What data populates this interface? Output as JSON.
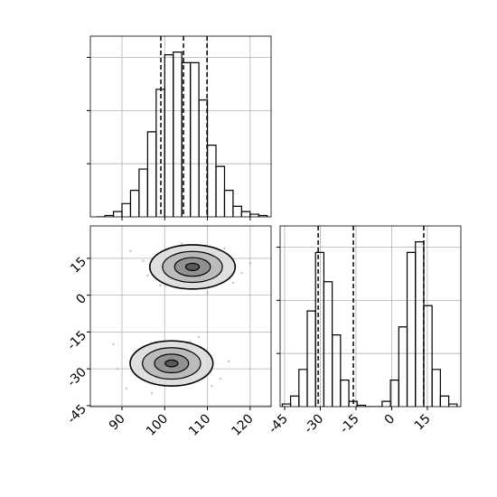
{
  "chart_data": [
    {
      "type": "histogram",
      "color": "#000000",
      "grid": true,
      "bins": [
        84,
        86,
        88,
        90,
        92,
        94,
        96,
        98,
        100,
        102,
        104,
        106,
        108,
        110,
        112,
        114,
        116,
        118,
        120,
        122,
        124
      ],
      "values": [
        0,
        0.0005,
        0.002,
        0.005,
        0.01,
        0.018,
        0.032,
        0.048,
        0.061,
        0.062,
        0.058,
        0.058,
        0.044,
        0.027,
        0.019,
        0.01,
        0.004,
        0.002,
        0.001,
        0.0005
      ],
      "xlim": [
        82.6,
        124.9
      ],
      "xtick_marks": [
        90,
        100,
        110,
        120
      ],
      "ylim": [
        0,
        0.068
      ],
      "ytick_marks": [
        0.02,
        0.04,
        0.06
      ],
      "quantiles": [
        99.1,
        104.4,
        109.9
      ]
    },
    {
      "type": "contour",
      "color": "#000000",
      "grid": true,
      "xlim": [
        82.6,
        124.9
      ],
      "xticks": [
        90,
        100,
        110,
        120
      ],
      "ylim": [
        -45.4,
        28.2
      ],
      "yticks": [
        15,
        0,
        -15,
        -30,
        -45
      ],
      "points": {
        "x": [
          95,
          118,
          99,
          114,
          92,
          120,
          104,
          110,
          96,
          116,
          88,
          113,
          91,
          108,
          97,
          106,
          115,
          89,
          111,
          100
        ],
        "y": [
          14,
          9,
          4,
          19,
          18,
          13,
          21,
          1,
          8,
          5,
          -20,
          -34,
          -38,
          -17,
          -40,
          -19,
          -27,
          -30,
          -37,
          -23
        ]
      },
      "contours": [
        {
          "cx": 106.5,
          "cy": 11.5,
          "rx": [
            10,
            7,
            4.2,
            1.6
          ],
          "ry": [
            9,
            6.3,
            3.8,
            1.5
          ]
        },
        {
          "cx": 101.6,
          "cy": -27.8,
          "rx": [
            9.7,
            6.8,
            4,
            1.5
          ],
          "ry": [
            9.2,
            6.4,
            3.8,
            1.4
          ]
        }
      ]
    },
    {
      "type": "histogram",
      "color": "#000000",
      "grid": true,
      "bins": [
        -46,
        -42.5,
        -39,
        -35.5,
        -32,
        -28.5,
        -25,
        -21.5,
        -18,
        -14.5,
        -11,
        -7.5,
        -4,
        -0.5,
        3,
        6.5,
        10,
        13.5,
        17,
        20.5,
        24,
        27.5
      ],
      "values": [
        0.001,
        0.004,
        0.014,
        0.036,
        0.058,
        0.047,
        0.027,
        0.01,
        0.002,
        0.0005,
        0,
        0,
        0.002,
        0.01,
        0.03,
        0.058,
        0.062,
        0.038,
        0.014,
        0.004,
        0.001
      ],
      "xlim": [
        -46.9,
        29.1
      ],
      "xticks": [
        -45,
        -30,
        -15,
        0,
        15
      ],
      "ylim": [
        0,
        0.068
      ],
      "ytick_marks": [
        0.02,
        0.04,
        0.06
      ],
      "quantiles": [
        -30.9,
        -16.1,
        13.5
      ]
    }
  ]
}
